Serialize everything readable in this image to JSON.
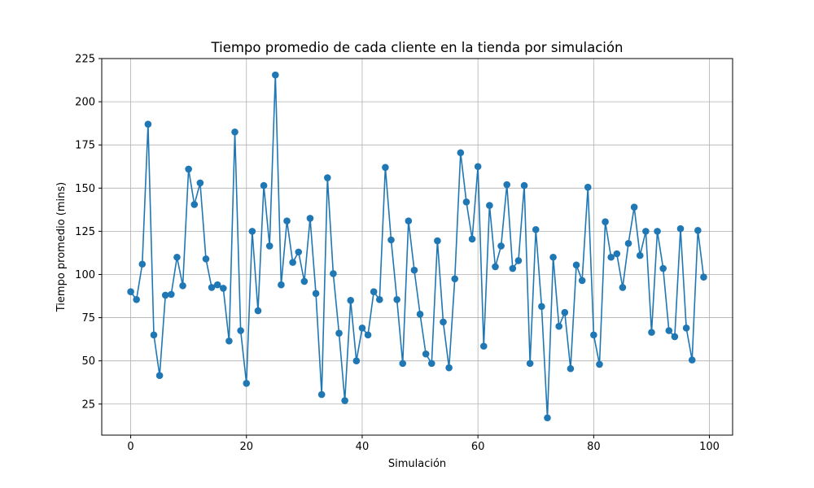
{
  "chart_data": {
    "type": "line",
    "title": "Tiempo promedio de cada cliente en la tienda por simulación",
    "xlabel": "Simulación",
    "ylabel": "Tiempo promedio (mins)",
    "xlim": [
      -5,
      104
    ],
    "ylim": [
      7,
      225
    ],
    "xticks": [
      0,
      20,
      40,
      60,
      80,
      100
    ],
    "yticks": [
      25,
      50,
      75,
      100,
      125,
      150,
      175,
      200,
      225
    ],
    "grid": true,
    "marker": "circle",
    "color": "#1f77b4",
    "series": [
      {
        "x": [
          0,
          1,
          2,
          3,
          4,
          5,
          6,
          7,
          8,
          9,
          10,
          11,
          12,
          13,
          14,
          15,
          16,
          17,
          18,
          19,
          20,
          21,
          22,
          23,
          24,
          25,
          26,
          27,
          28,
          29,
          30,
          31,
          32,
          33,
          34,
          35,
          36,
          37,
          38,
          39,
          40,
          41,
          42,
          43,
          44,
          45,
          46,
          47,
          48,
          49,
          50,
          51,
          52,
          53,
          54,
          55,
          56,
          57,
          58,
          59,
          60,
          61,
          62,
          63,
          64,
          65,
          66,
          67,
          68,
          69,
          70,
          71,
          72,
          73,
          74,
          75,
          76,
          77,
          78,
          79,
          80,
          81,
          82,
          83,
          84,
          85,
          86,
          87,
          88,
          89,
          90,
          91,
          92,
          93,
          94,
          95,
          96,
          97,
          98,
          99
        ],
        "values": [
          90,
          85.5,
          106,
          187,
          65,
          41.5,
          88,
          88.5,
          110,
          93.5,
          161,
          140.5,
          153,
          109,
          92.5,
          94,
          92,
          61.5,
          182.5,
          67.5,
          37,
          125,
          79,
          151.5,
          116.5,
          215.5,
          94,
          131,
          107,
          113,
          96,
          132.5,
          89,
          30.5,
          156,
          100.5,
          66,
          27,
          85,
          50,
          69,
          65,
          90,
          85.5,
          162,
          120,
          85.5,
          48.5,
          131,
          102.5,
          77,
          54,
          48.5,
          119.5,
          72.5,
          46,
          97.5,
          170.5,
          142,
          120.5,
          162.5,
          58.5,
          140,
          104.5,
          116.5,
          152,
          103.5,
          108,
          151.5,
          48.5,
          126,
          81.5,
          17,
          110,
          70,
          78,
          45.5,
          105.5,
          96.5,
          150.5,
          65,
          48,
          130.5,
          110,
          112,
          92.5,
          118,
          139,
          111,
          125,
          66.5,
          125,
          103.5,
          67.5,
          64,
          126.5,
          69,
          50.5,
          125.5,
          98.5
        ]
      }
    ]
  }
}
